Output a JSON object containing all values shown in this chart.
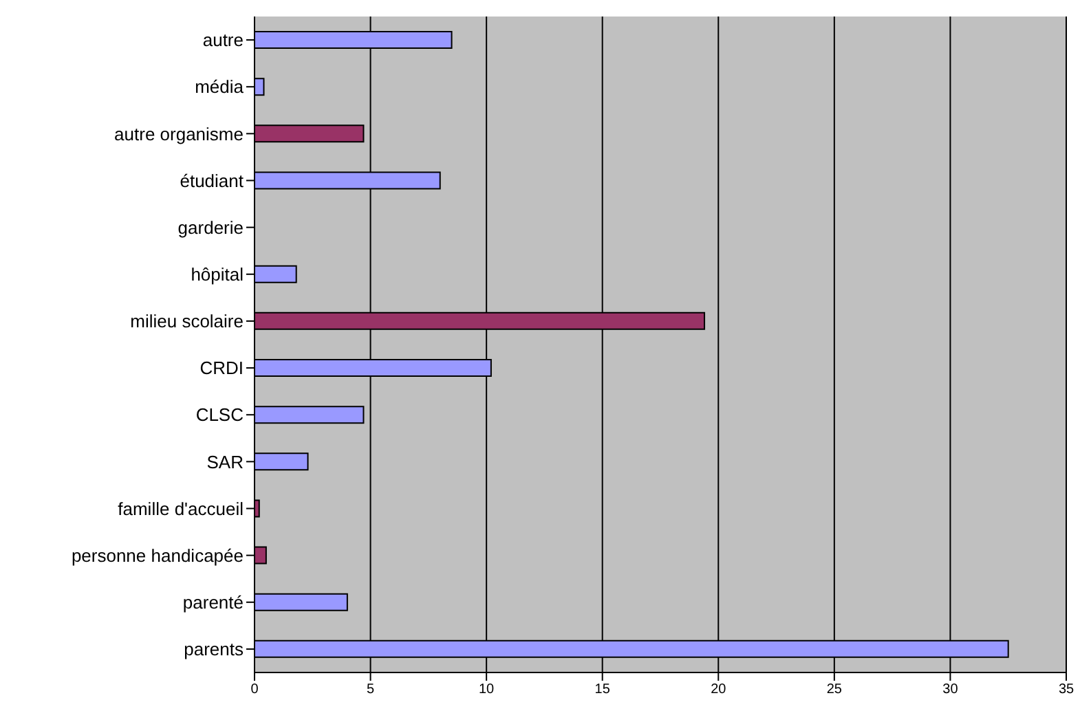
{
  "chart_data": {
    "type": "bar",
    "orientation": "horizontal",
    "categories": [
      "autre",
      "média",
      "autre organisme",
      "étudiant",
      "garderie",
      "hôpital",
      "milieu scolaire",
      "CRDI",
      "CLSC",
      "SAR",
      "famille d'accueil",
      "personne handicapée",
      "parenté",
      "parents"
    ],
    "values": [
      8.5,
      0.4,
      4.7,
      8.0,
      0,
      1.8,
      19.4,
      10.2,
      4.7,
      2.3,
      0.2,
      0.5,
      4.0,
      32.5
    ],
    "colors": [
      "#9999ff",
      "#9999ff",
      "#993366",
      "#9999ff",
      "#9999ff",
      "#9999ff",
      "#993366",
      "#9999ff",
      "#9999ff",
      "#9999ff",
      "#993366",
      "#993366",
      "#9999ff",
      "#9999ff"
    ],
    "xlim": [
      0,
      35
    ],
    "xticks": [
      0,
      5,
      10,
      15,
      20,
      25,
      30,
      35
    ],
    "grid": "x",
    "legend": false
  }
}
